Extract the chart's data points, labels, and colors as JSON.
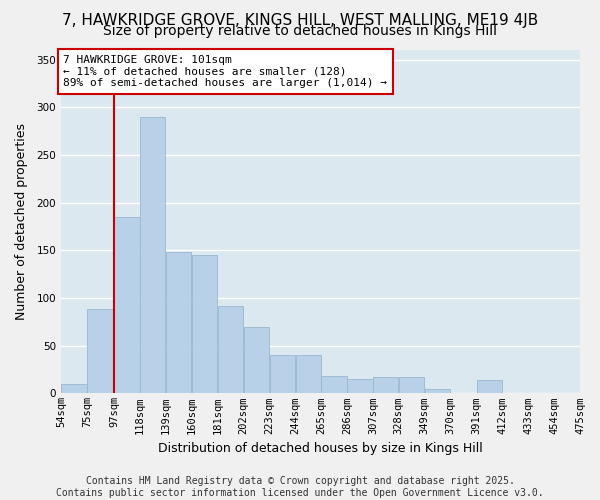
{
  "title_line1": "7, HAWKRIDGE GROVE, KINGS HILL, WEST MALLING, ME19 4JB",
  "title_line2": "Size of property relative to detached houses in Kings Hill",
  "xlabel": "Distribution of detached houses by size in Kings Hill",
  "ylabel": "Number of detached properties",
  "bar_color": "#b8d0e8",
  "bar_edge_color": "#9ab8cc",
  "background_color": "#dce8f0",
  "grid_color": "#ffffff",
  "vline_color": "#cc0000",
  "vline_x": 97,
  "annotation_text": "7 HAWKRIDGE GROVE: 101sqm\n← 11% of detached houses are smaller (128)\n89% of semi-detached houses are larger (1,014) →",
  "annotation_box_color": "#ffffff",
  "annotation_border_color": "#cc0000",
  "bin_edges": [
    54,
    75,
    97,
    118,
    139,
    160,
    181,
    202,
    223,
    244,
    265,
    286,
    307,
    328,
    349,
    370,
    391,
    412,
    433,
    454,
    475
  ],
  "values": [
    10,
    88,
    185,
    290,
    148,
    145,
    92,
    70,
    40,
    40,
    18,
    15,
    17,
    17,
    5,
    0,
    14,
    0,
    0,
    0
  ],
  "ylim": [
    0,
    360
  ],
  "yticks": [
    0,
    50,
    100,
    150,
    200,
    250,
    300,
    350
  ],
  "tick_labels": [
    "54sqm",
    "75sqm",
    "97sqm",
    "118sqm",
    "139sqm",
    "160sqm",
    "181sqm",
    "202sqm",
    "223sqm",
    "244sqm",
    "265sqm",
    "286sqm",
    "307sqm",
    "328sqm",
    "349sqm",
    "370sqm",
    "391sqm",
    "412sqm",
    "433sqm",
    "454sqm",
    "475sqm"
  ],
  "footer_text": "Contains HM Land Registry data © Crown copyright and database right 2025.\nContains public sector information licensed under the Open Government Licence v3.0.",
  "title_fontsize": 11,
  "subtitle_fontsize": 10,
  "axis_label_fontsize": 9,
  "tick_fontsize": 7.5,
  "annotation_fontsize": 8,
  "footer_fontsize": 7
}
